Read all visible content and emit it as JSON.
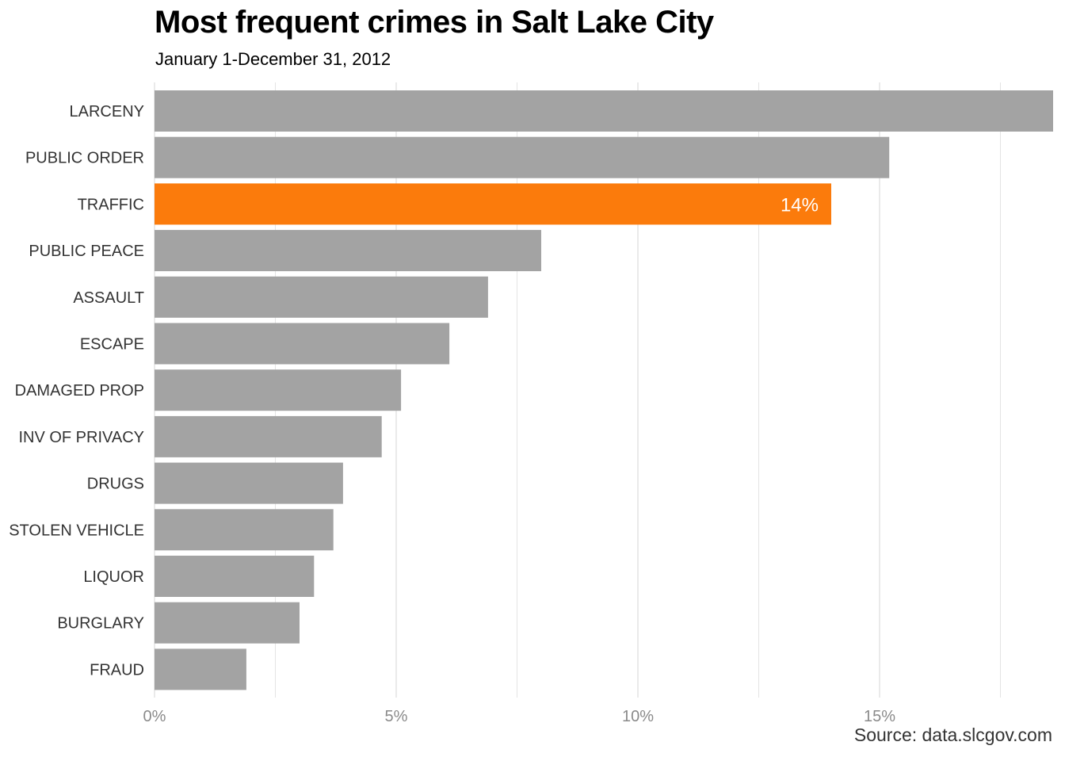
{
  "header": {
    "title": "Most frequent crimes in Salt Lake City",
    "subtitle": "January 1-December 31, 2012"
  },
  "footer": {
    "source": "Source: data.slcgov.com"
  },
  "colors": {
    "bar_default": "#a3a3a3",
    "bar_highlight": "#fb7b0c",
    "gridline": "#dddddd",
    "tick_label": "#8a8a8a",
    "category_label": "#333333",
    "data_label": "#ffffff"
  },
  "chart_data": {
    "type": "bar",
    "orientation": "horizontal",
    "title": "Most frequent crimes in Salt Lake City",
    "subtitle": "January 1-December 31, 2012",
    "xlabel": "",
    "ylabel": "",
    "xlim": [
      0,
      18.6
    ],
    "xticks": [
      0,
      5,
      10,
      15
    ],
    "xtick_labels": [
      "0%",
      "5%",
      "10%",
      "15%"
    ],
    "grid": "vertical",
    "legend": "none",
    "categories": [
      "LARCENY",
      "PUBLIC ORDER",
      "TRAFFIC",
      "PUBLIC PEACE",
      "ASSAULT",
      "ESCAPE",
      "DAMAGED PROP",
      "INV OF PRIVACY",
      "DRUGS",
      "STOLEN VEHICLE",
      "LIQUOR",
      "BURGLARY",
      "FRAUD"
    ],
    "values": [
      18.6,
      15.2,
      14.0,
      8.0,
      6.9,
      6.1,
      5.1,
      4.7,
      3.9,
      3.7,
      3.3,
      3.0,
      1.9
    ],
    "highlight": "TRAFFIC",
    "data_labels": [
      {
        "category": "TRAFFIC",
        "text": "14%"
      }
    ]
  }
}
